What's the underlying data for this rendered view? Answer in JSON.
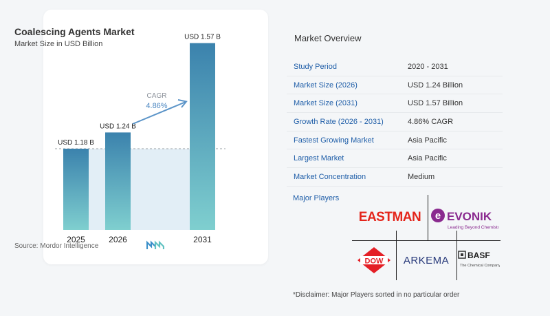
{
  "chart_data": {
    "type": "bar",
    "title": "Coalescing Agents Market",
    "subtitle": "Market Size in USD Billion",
    "categories": [
      "2025",
      "2026",
      "2031"
    ],
    "values": [
      1.18,
      1.24,
      1.57
    ],
    "data_labels": [
      "USD 1.18 B",
      "USD 1.24 B",
      "USD 1.57 B"
    ],
    "cagr_label": "CAGR",
    "cagr_value": "4.86%",
    "ylim": [
      0,
      1.6
    ],
    "grid": false,
    "colors": {
      "bar_top": "#3b82ad",
      "bar_bottom": "#7fcfcf",
      "band": "#e2eef6",
      "arrow": "#5b94c8",
      "dashed_line": "#9aa0a6"
    }
  },
  "source": {
    "text": "Source:  Mordor Intelligence",
    "logo_icon": "mordor-logo-icon"
  },
  "overview": {
    "title": "Market Overview",
    "rows": [
      {
        "label": "Study Period",
        "value": "2020 - 2031"
      },
      {
        "label": "Market Size (2026)",
        "value": "USD 1.24 Billion"
      },
      {
        "label": "Market Size (2031)",
        "value": "USD 1.57 Billion"
      },
      {
        "label": "Growth Rate (2026 - 2031)",
        "value": "4.86% CAGR"
      },
      {
        "label": "Fastest Growing Market",
        "value": "Asia Pacific"
      },
      {
        "label": "Largest Market",
        "value": "Asia Pacific"
      },
      {
        "label": "Market Concentration",
        "value": "Medium"
      }
    ],
    "major_players_label": "Major Players",
    "players": {
      "eastman": "EASTMAN",
      "evonik": "EVONIK",
      "evonik_tagline": "Leading Beyond Chemistry",
      "dow": "DOW",
      "arkema": "ARKEMA",
      "basf": "BASF",
      "basf_tagline": "The Chemical Company"
    },
    "disclaimer": "*Disclaimer: Major Players sorted in no particular order"
  }
}
